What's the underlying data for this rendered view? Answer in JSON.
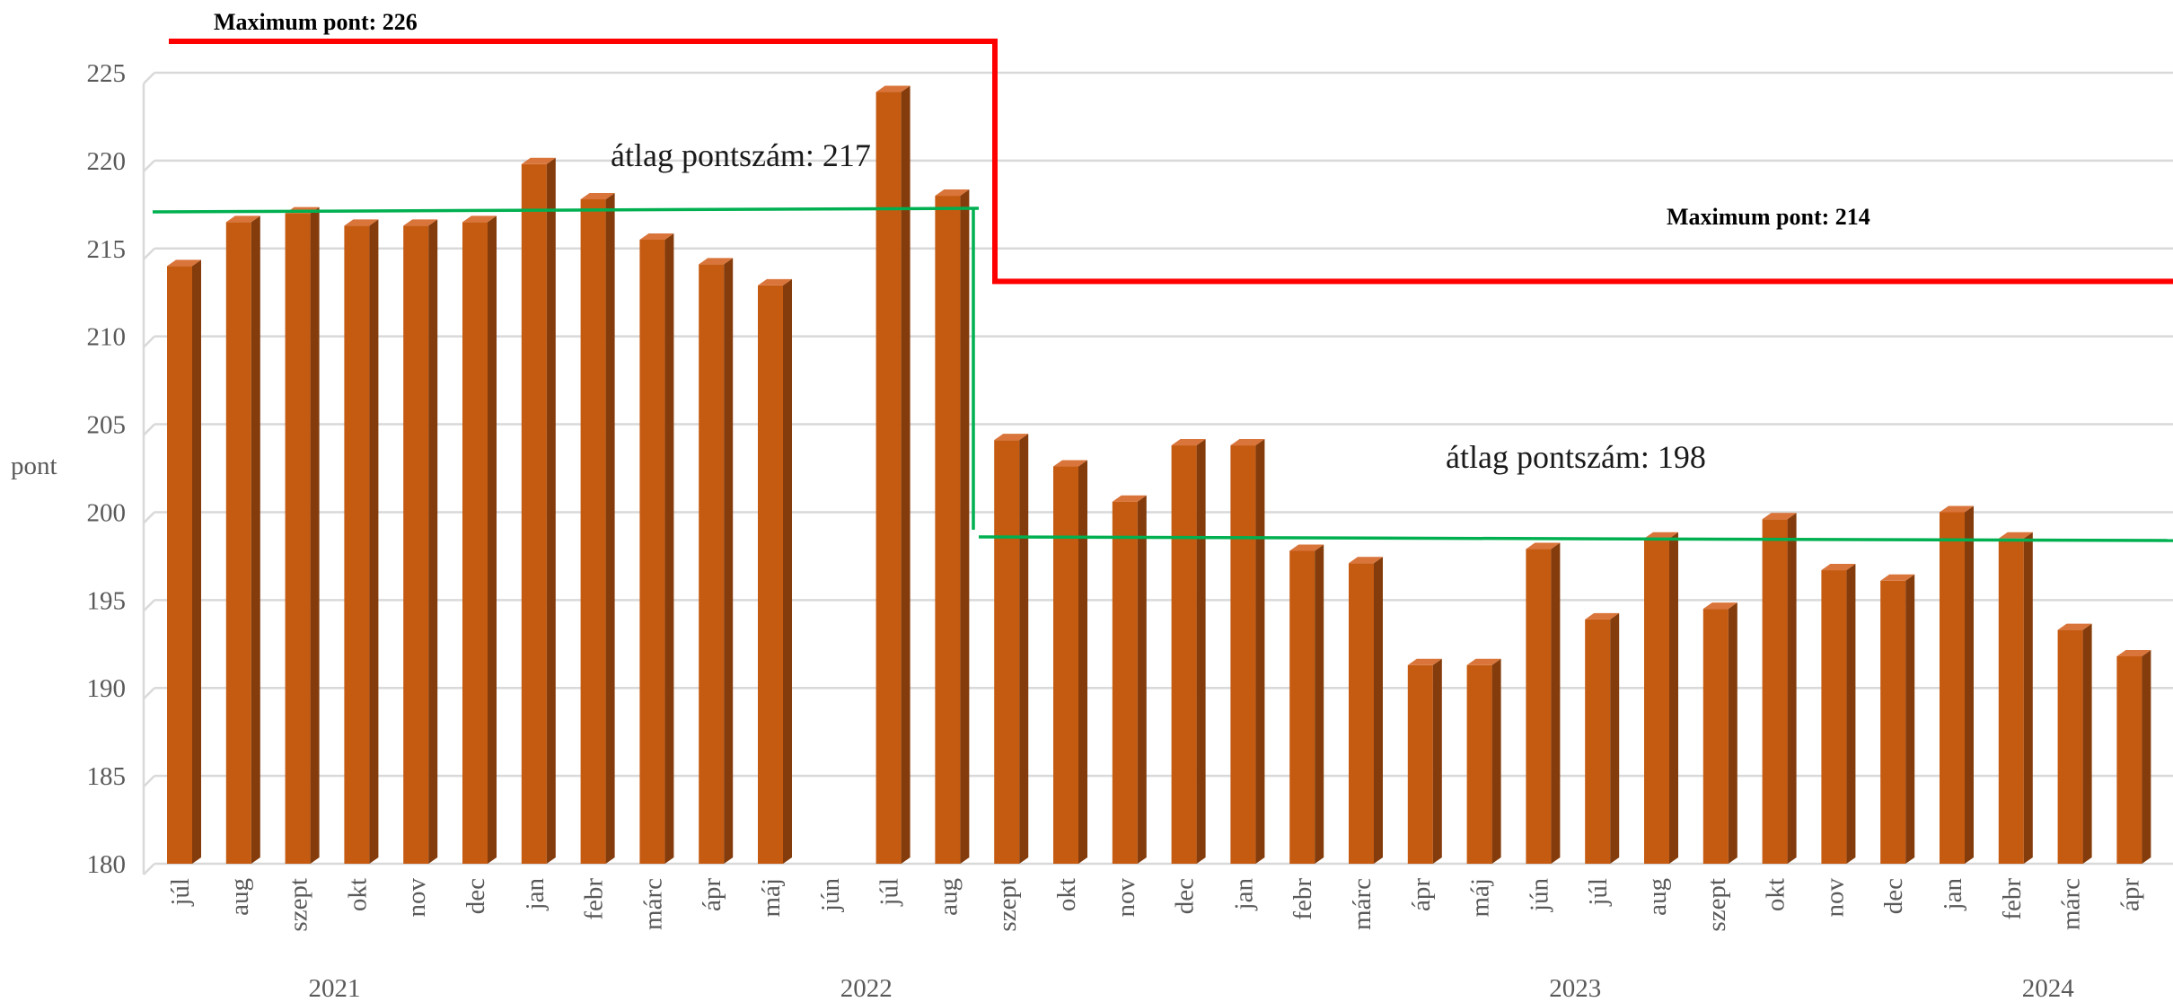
{
  "chart_data": {
    "type": "bar",
    "ylabel": "pont",
    "ylim": [
      180,
      225
    ],
    "yticks": [
      180,
      185,
      190,
      195,
      200,
      205,
      210,
      215,
      220,
      225
    ],
    "grid": true,
    "categories": [
      "júl",
      "aug",
      "szept",
      "okt",
      "nov",
      "dec",
      "jan",
      "febr",
      "márc",
      "ápr",
      "máj",
      "jún",
      "júl",
      "aug",
      "szept",
      "okt",
      "nov",
      "dec",
      "jan",
      "febr",
      "márc",
      "ápr",
      "máj",
      "jún",
      "júl",
      "aug",
      "szept",
      "okt",
      "nov",
      "dec",
      "jan",
      "febr",
      "márc",
      "ápr"
    ],
    "values": [
      214,
      216.5,
      217,
      216.3,
      216.3,
      216.5,
      219.8,
      217.8,
      215.5,
      214.1,
      212.9,
      null,
      223.9,
      218,
      204.1,
      202.6,
      200.6,
      203.8,
      203.8,
      197.8,
      197.1,
      191.3,
      191.3,
      197.9,
      193.9,
      198.5,
      194.5,
      199.6,
      196.7,
      196.1,
      200,
      198.5,
      193.3,
      191.8
    ],
    "years": [
      {
        "label": "2021",
        "center_index": 2.5
      },
      {
        "label": "2022",
        "center_index": 11.5
      },
      {
        "label": "2023",
        "center_index": 23.5
      },
      {
        "label": "2024",
        "center_index": 31.5
      }
    ],
    "annotations": [
      {
        "id": "max1",
        "text": "Maximum pont: 226",
        "value": 226,
        "from_index": 0,
        "to_index": 13.5
      },
      {
        "id": "max2",
        "text": "Maximum pont: 214",
        "value": 214,
        "from_index": 13.5,
        "to_index": 33.5
      },
      {
        "id": "avg1",
        "text": "átlag pontszám: 217",
        "value": 217,
        "from_index": 0,
        "to_index": 13.5
      },
      {
        "id": "avg2",
        "text": "átlag pontszám: 198",
        "value": 198,
        "from_index": 13.5,
        "to_index": 33.5
      }
    ],
    "colors": {
      "bar_front": "#c55a11",
      "bar_side": "#843c0c",
      "bar_top": "#d9743a",
      "grid": "#d9d9d9",
      "max_line": "#ff0000",
      "avg_line": "#00b050"
    }
  }
}
